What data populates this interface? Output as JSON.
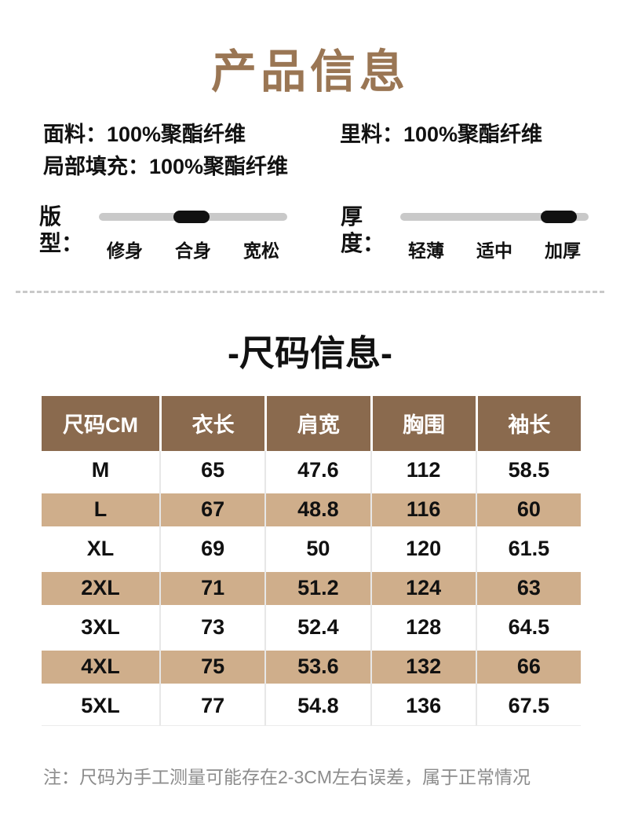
{
  "colors": {
    "title_brown": "#9a7654",
    "header_brown": "#8a6a4e",
    "row_tan": "#cfae8b",
    "track_gray": "#c9c9c9",
    "indicator_black": "#111111",
    "note_gray": "#8c8c8c"
  },
  "page": {
    "title": "产品信息",
    "size_title": "-尺码信息-",
    "note": "注：尺码为手工测量可能存在2-3CM左右误差，属于正常情况"
  },
  "info": {
    "rows": [
      {
        "label": "面料：",
        "value": "100%聚酯纤维"
      },
      {
        "label": "里料：",
        "value": "100%聚酯纤维"
      },
      {
        "label": "局部填充：",
        "value": "100%聚酯纤维"
      }
    ]
  },
  "sliders": [
    {
      "label": "版型：",
      "options": [
        "修身",
        "合身",
        "宽松"
      ],
      "selected": "合身",
      "position": "middle"
    },
    {
      "label": "厚度：",
      "options": [
        "轻薄",
        "适中",
        "加厚"
      ],
      "selected": "加厚",
      "position": "right"
    }
  ],
  "size_table": {
    "headers": [
      "尺码CM",
      "衣长",
      "肩宽",
      "胸围",
      "袖长"
    ],
    "rows": [
      [
        "M",
        "65",
        "47.6",
        "112",
        "58.5"
      ],
      [
        "L",
        "67",
        "48.8",
        "116",
        "60"
      ],
      [
        "XL",
        "69",
        "50",
        "120",
        "61.5"
      ],
      [
        "2XL",
        "71",
        "51.2",
        "124",
        "63"
      ],
      [
        "3XL",
        "73",
        "52.4",
        "128",
        "64.5"
      ],
      [
        "4XL",
        "75",
        "53.6",
        "132",
        "66"
      ],
      [
        "5XL",
        "77",
        "54.8",
        "136",
        "67.5"
      ]
    ]
  }
}
